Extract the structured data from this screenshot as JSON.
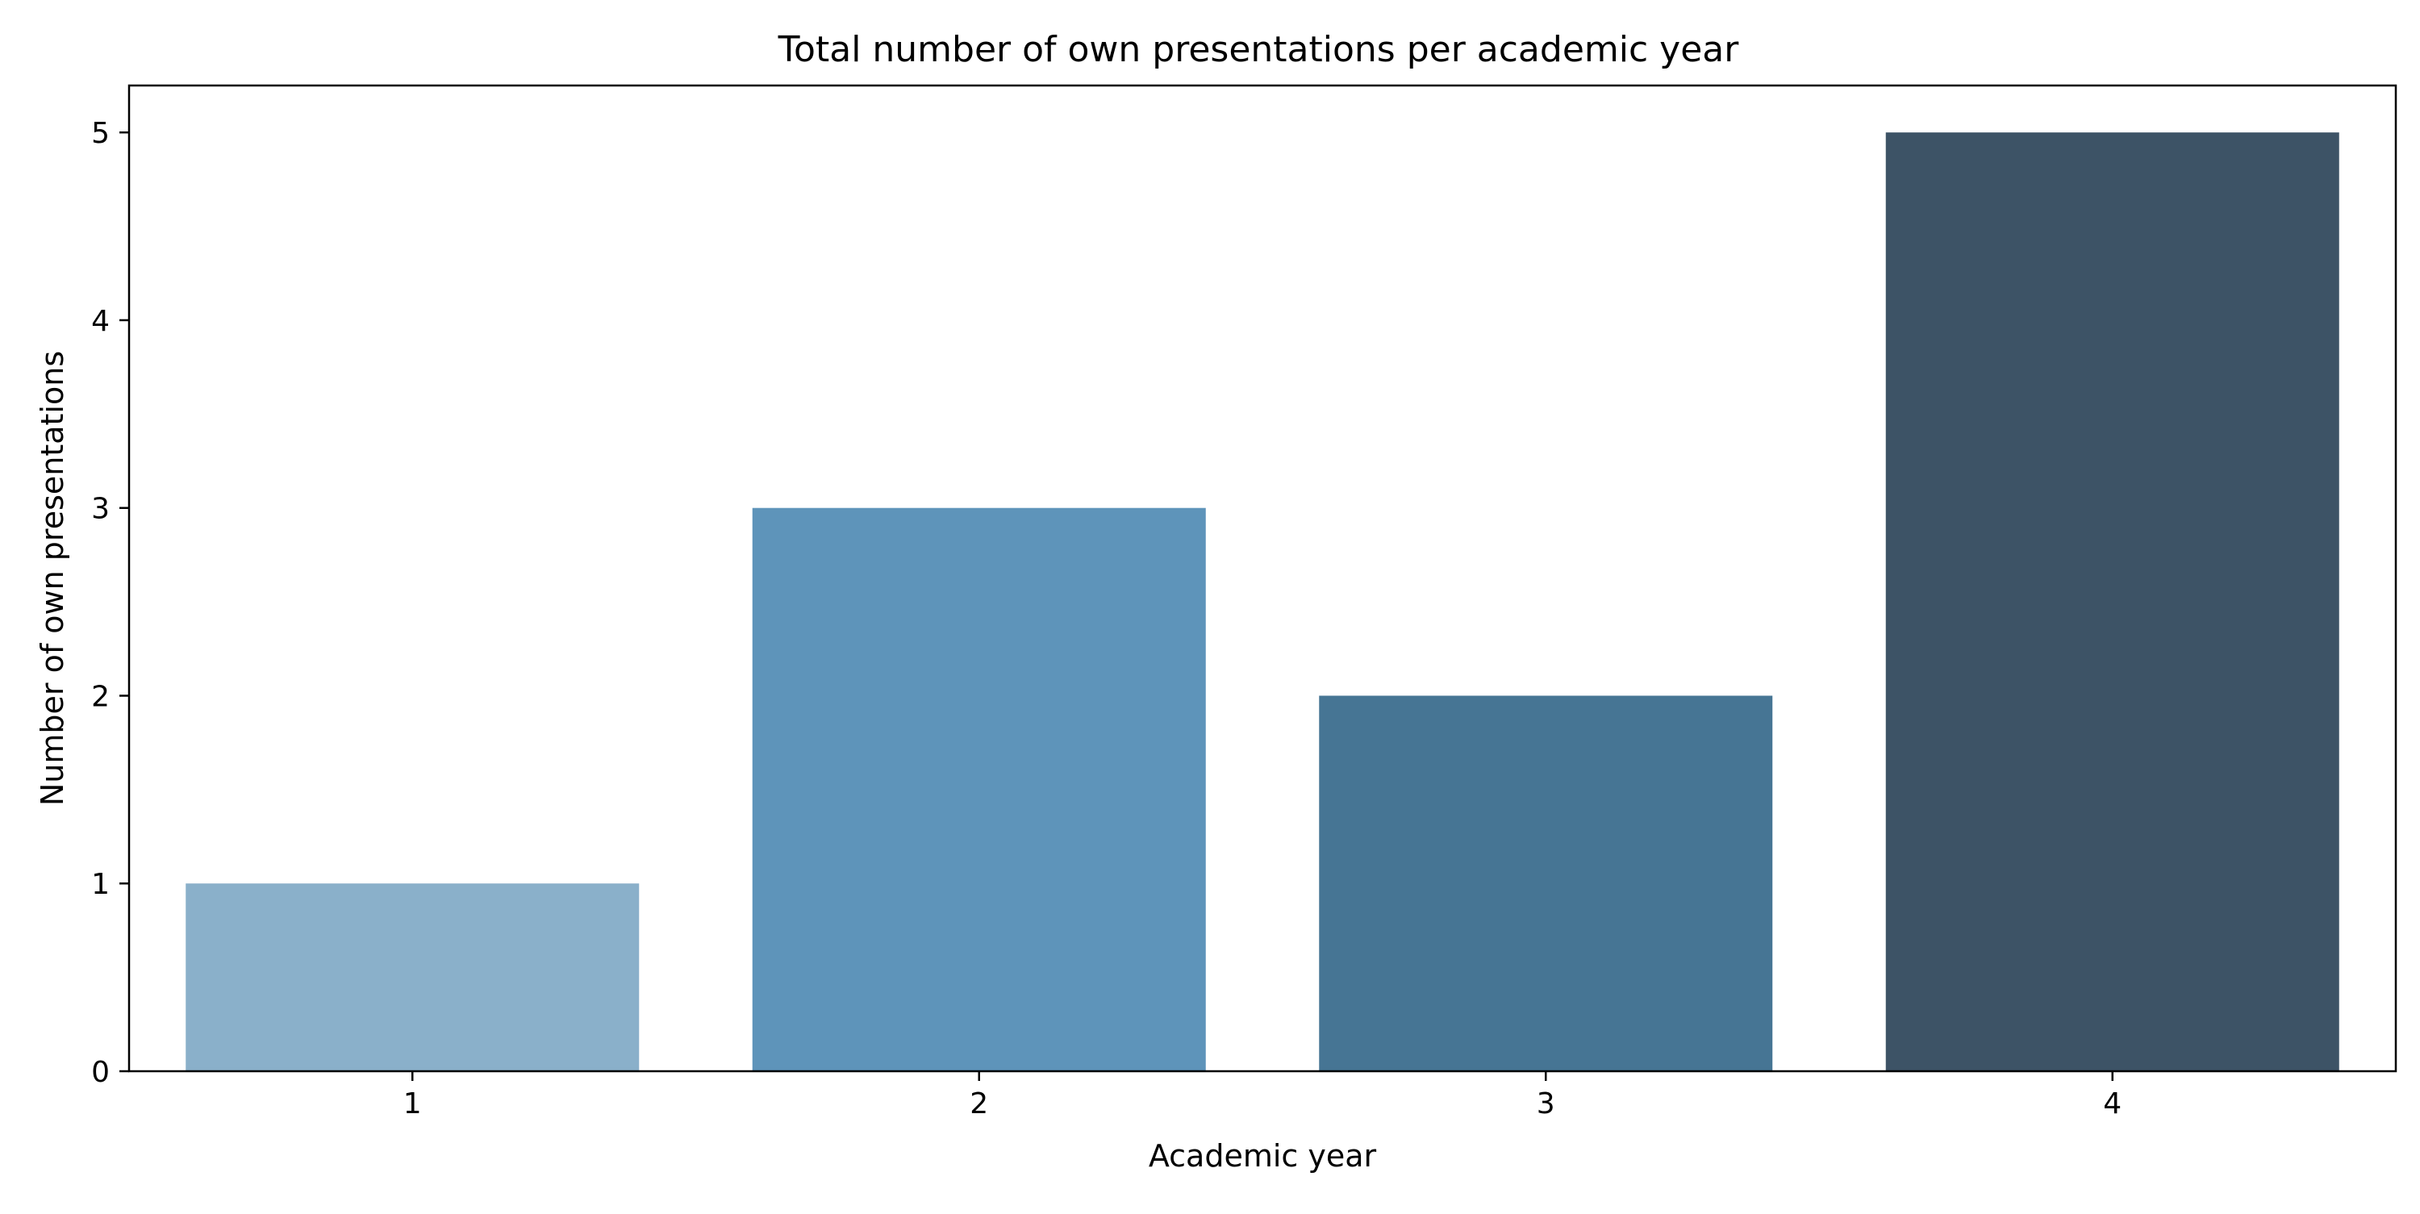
{
  "chart_data": {
    "type": "bar",
    "title": "Total number of own presentations per academic year",
    "xlabel": "Academic year",
    "ylabel": "Number of own presentations",
    "categories": [
      "1",
      "2",
      "3",
      "4"
    ],
    "values": [
      1,
      3,
      2,
      5
    ],
    "ylim": [
      0,
      5.25
    ],
    "yticks": [
      0,
      1,
      2,
      3,
      4,
      5
    ],
    "grid": false,
    "legend": "none",
    "colors": [
      "#8AB0CA",
      "#5E94BA",
      "#467594",
      "#3D5366"
    ]
  }
}
